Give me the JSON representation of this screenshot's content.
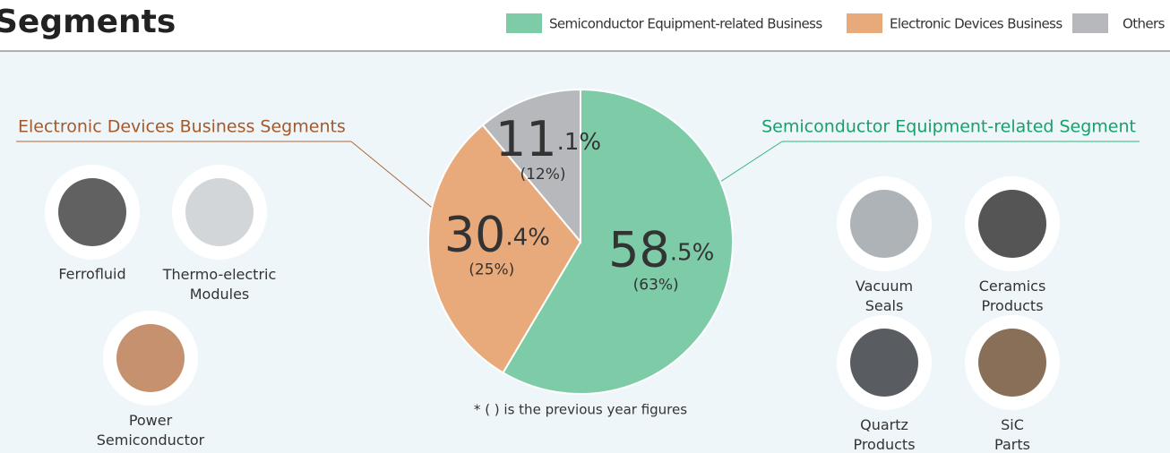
{
  "chart_data": {
    "type": "pie",
    "title": "Segments",
    "categories": [
      "Semiconductor Equipment-related Business",
      "Electronic Devices Business",
      "Others"
    ],
    "values": [
      58.5,
      30.4,
      11.1
    ],
    "value_labels": [
      "58.5%",
      "30.4%",
      "11.1%"
    ],
    "previous_values": [
      63,
      25,
      12
    ],
    "previous_value_labels": [
      "(63%)",
      "(25%)",
      "(12%)"
    ],
    "colors": [
      "#7ecba8",
      "#e8aa7b",
      "#b6b8bb"
    ],
    "legend": "top-right",
    "note": "* ( ) is the previous year figures",
    "callouts": [
      {
        "title": "Electronic Devices Business Segments",
        "items": [
          "Ferrofluid",
          "Thermo-electric Modules",
          "Power Semiconductor"
        ]
      },
      {
        "title": "Semiconductor Equipment-related  Segment",
        "items": [
          "Vacuum Seals",
          "Ceramics Products",
          "Quartz Products",
          "SiC Parts"
        ]
      }
    ]
  }
}
